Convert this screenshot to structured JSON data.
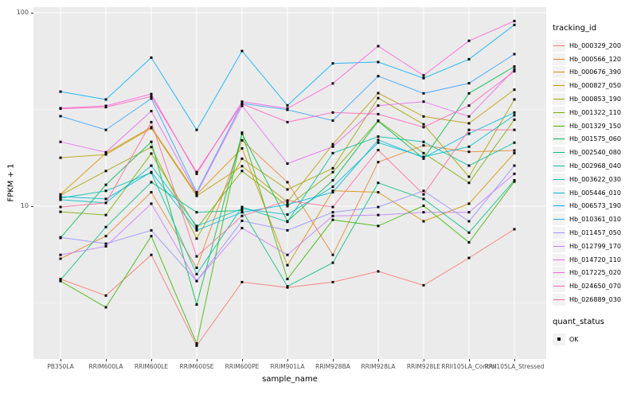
{
  "chart_data": {
    "type": "line",
    "xlabel": "sample_name",
    "ylabel": "FPKM + 1",
    "y_scale": "log10",
    "ylim": [
      1.6,
      106
    ],
    "grid": "on",
    "legend_position": "right",
    "panel_bg": "#EBEBEB",
    "marker": {
      "shape": "square",
      "color": "#000000"
    },
    "y_ticks": [
      {
        "value": 10,
        "label": "10"
      },
      {
        "value": 100,
        "label": "100"
      }
    ],
    "y_minor": [
      3.162,
      31.62
    ],
    "categories": [
      "PB350LA",
      "RRIM600LA",
      "RRIM600LE",
      "RRIM600SE",
      "RRIM600PE",
      "RRIM901LA",
      "RRIM928BA",
      "RRIM928LA",
      "RRIM928LE",
      "RRII105LA_Control",
      "RRII105LA_Stressed"
    ],
    "series": [
      {
        "name": "Hb_000329_200",
        "color": "#F8766D",
        "values": [
          4.2,
          3.45,
          5.6,
          1.9,
          4.05,
          3.8,
          4.05,
          4.6,
          3.9,
          5.4,
          7.6
        ]
      },
      {
        "name": "Hb_000566_120",
        "color": "#EA8331",
        "values": [
          5.35,
          7.0,
          11.8,
          4.8,
          21.9,
          13.3,
          5.6,
          16.9,
          20.6,
          19.1,
          19.4
        ]
      },
      {
        "name": "Hb_000676_390",
        "color": "#D89000",
        "values": [
          11.5,
          18.8,
          25.6,
          11.5,
          19.9,
          4.95,
          12.0,
          11.8,
          8.35,
          10.3,
          18.8
        ]
      },
      {
        "name": "Hb_000827_050",
        "color": "#C09B00",
        "values": [
          17.8,
          18.5,
          25.3,
          11.3,
          16.1,
          10.5,
          20.9,
          38.4,
          29.1,
          26.8,
          40.0
        ]
      },
      {
        "name": "Hb_000853_190",
        "color": "#A3A500",
        "values": [
          11.4,
          15.2,
          20.2,
          6.8,
          17.6,
          12.2,
          15.7,
          36.2,
          26.5,
          14.2,
          35.6
        ]
      },
      {
        "name": "Hb_001322_110",
        "color": "#7CAE00",
        "values": [
          9.35,
          9.0,
          18.7,
          7.7,
          15.2,
          10.0,
          15.0,
          27.7,
          18.8,
          13.2,
          28.0
        ]
      },
      {
        "name": "Hb_001329_150",
        "color": "#39B600",
        "values": [
          4.1,
          3.0,
          7.0,
          1.95,
          24.0,
          4.2,
          8.5,
          7.9,
          10.05,
          6.5,
          13.4
        ]
      },
      {
        "name": "Hb_001575_060",
        "color": "#00BB4E",
        "values": [
          6.85,
          12.9,
          21.5,
          3.1,
          23.7,
          8.35,
          13.6,
          27.5,
          17.6,
          38.3,
          52.7
        ]
      },
      {
        "name": "Hb_002540_080",
        "color": "#00BF7D",
        "values": [
          4.15,
          7.8,
          13.3,
          9.3,
          9.5,
          3.85,
          5.1,
          13.2,
          10.9,
          7.3,
          13.6
        ]
      },
      {
        "name": "Hb_002968_040",
        "color": "#00C1A3",
        "values": [
          11.0,
          12.0,
          14.9,
          4.45,
          9.9,
          8.3,
          18.8,
          22.9,
          21.5,
          16.2,
          21.3
        ]
      },
      {
        "name": "Hb_003622_030",
        "color": "#00BFC4",
        "values": [
          10.8,
          10.4,
          16.2,
          7.9,
          9.7,
          9.05,
          12.6,
          21.3,
          18.0,
          20.3,
          29.5
        ]
      },
      {
        "name": "Hb_005446_010",
        "color": "#00BAE0",
        "values": [
          11.2,
          10.9,
          15.0,
          7.5,
          9.3,
          10.2,
          11.8,
          22.0,
          17.8,
          23.7,
          30.5
        ]
      },
      {
        "name": "Hb_006573_190",
        "color": "#00B0F6",
        "values": [
          39.1,
          35.6,
          58.6,
          24.8,
          63.4,
          33.2,
          54.7,
          55.6,
          45.9,
          57.5,
          86.5
        ]
      },
      {
        "name": "Hb_010361_010",
        "color": "#35A2FF",
        "values": [
          29.2,
          24.8,
          36.0,
          11.8,
          34.0,
          31.5,
          27.7,
          47.0,
          38.3,
          43.2,
          61.1
        ]
      },
      {
        "name": "Hb_011457_050",
        "color": "#9590FF",
        "values": [
          6.9,
          6.4,
          7.5,
          4.1,
          8.4,
          7.5,
          9.3,
          9.9,
          12.0,
          8.35,
          16.2
        ]
      },
      {
        "name": "Hb_012799_170",
        "color": "#C77CFF",
        "values": [
          5.6,
          6.2,
          10.3,
          4.1,
          7.7,
          5.6,
          8.9,
          9.0,
          9.3,
          9.3,
          14.7
        ]
      },
      {
        "name": "Hb_014720_110",
        "color": "#E76BF3",
        "values": [
          21.5,
          19.0,
          31.0,
          11.6,
          33.0,
          16.6,
          20.3,
          33.1,
          34.7,
          29.1,
          51.0
        ]
      },
      {
        "name": "Hb_017225_020",
        "color": "#FA62DB",
        "values": [
          32.1,
          33.0,
          38.0,
          14.7,
          34.7,
          32.0,
          43.1,
          67.2,
          47.4,
          71.6,
          90.6
        ]
      },
      {
        "name": "Hb_024650_070",
        "color": "#FF62BC",
        "values": [
          31.9,
          32.5,
          36.9,
          15.0,
          33.8,
          27.2,
          30.5,
          29.9,
          25.6,
          33.1,
          49.8
        ]
      },
      {
        "name": "Hb_026889_030",
        "color": "#FF6A98",
        "values": [
          9.9,
          10.4,
          27.2,
          5.5,
          8.9,
          10.7,
          9.9,
          19.5,
          11.5,
          24.8,
          24.8
        ]
      }
    ],
    "legend": {
      "series_title": "tracking_id",
      "status_title": "quant_status",
      "status_items": [
        {
          "label": "OK",
          "marker": "black-square"
        }
      ]
    }
  }
}
